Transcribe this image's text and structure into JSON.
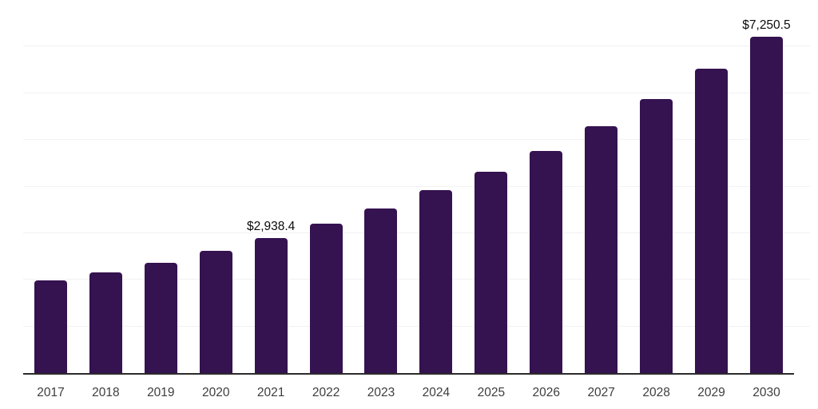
{
  "chart_data": {
    "type": "bar",
    "title": "",
    "xlabel": "",
    "ylabel": "",
    "categories": [
      "2017",
      "2018",
      "2019",
      "2020",
      "2021",
      "2022",
      "2023",
      "2024",
      "2025",
      "2026",
      "2027",
      "2028",
      "2029",
      "2030"
    ],
    "values": [
      2015,
      2195,
      2400,
      2650,
      2938.4,
      3240,
      3570,
      3950,
      4355,
      4805,
      5320,
      5905,
      6560,
      7250.5
    ],
    "labeled_points": [
      {
        "category": "2021",
        "label": "$2,938.4"
      },
      {
        "category": "2030",
        "label": "$7,250.5"
      }
    ],
    "ylim": [
      0,
      8000
    ],
    "gridline_step": 1000,
    "grid": true,
    "legend": "none",
    "colors": {
      "bar": "#351250",
      "gridline": "#f2f2f2",
      "axis": "#2b2b2b",
      "tick_label": "#3d3d3d",
      "data_label": "#0b0b0b",
      "background": "#ffffff"
    }
  }
}
